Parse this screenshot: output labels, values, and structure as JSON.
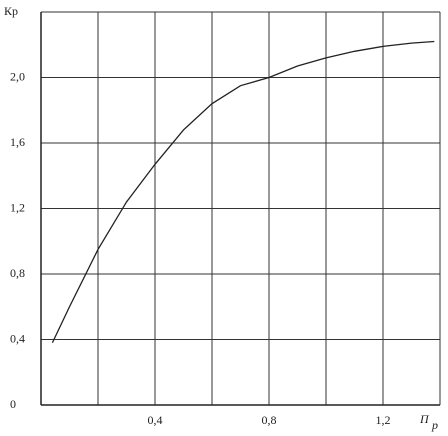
{
  "chart_data": {
    "type": "line",
    "y_label": "Кр",
    "x_label": "П",
    "x_label_subscript": "р",
    "x": [
      0.04,
      0.1,
      0.2,
      0.3,
      0.4,
      0.5,
      0.6,
      0.7,
      0.8,
      0.9,
      1.0,
      1.1,
      1.2,
      1.3,
      1.38
    ],
    "series": [
      {
        "color": "#222222",
        "values": [
          0.38,
          0.6,
          0.95,
          1.24,
          1.47,
          1.68,
          1.84,
          1.95,
          2.0,
          2.07,
          2.12,
          2.16,
          2.19,
          2.21,
          2.22
        ]
      }
    ],
    "xlim": [
      0,
      1.4
    ],
    "ylim": [
      0,
      2.4
    ],
    "xticks": [
      {
        "value": 0.2
      },
      {
        "value": 0.4,
        "label": "0,4"
      },
      {
        "value": 0.6
      },
      {
        "value": 0.8,
        "label": "0,8"
      },
      {
        "value": 1.0
      },
      {
        "value": 1.2,
        "label": "1,2"
      },
      {
        "value": 1.4
      }
    ],
    "yticks": [
      0,
      {
        "value": 0.4,
        "label": "0,4"
      },
      {
        "value": 0.8,
        "label": "0,8"
      },
      {
        "value": 1.2,
        "label": "1,2"
      },
      {
        "value": 1.6,
        "label": "1,6"
      },
      {
        "value": 2.0,
        "label": "2,0"
      },
      {
        "value": 2.4
      }
    ],
    "grid": true
  }
}
